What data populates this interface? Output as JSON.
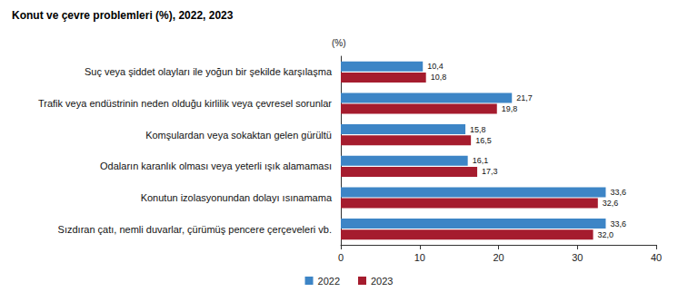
{
  "chart_data": {
    "type": "bar",
    "title": "Konut ve çevre problemleri (%), 2022, 2023",
    "xlabel": "(%)",
    "orientation": "horizontal",
    "categories": [
      "Suç veya şiddet olayları ile yoğun bir şekilde karşılaşma",
      "Trafik veya endüstrinin neden olduğu kirlilik veya çevresel sorunlar",
      "Komşulardan veya sokaktan gelen gürültü",
      "Odaların karanlık olması veya yeterli ışık alamaması",
      "Konutun izolasyonundan dolayı ısınamama",
      "Sızdıran çatı, nemli duvarlar, çürümüş pencere çerçeveleri vb."
    ],
    "series": [
      {
        "name": "2022",
        "color": "#3d85c6",
        "values": [
          10.4,
          21.7,
          15.8,
          16.1,
          33.6,
          33.6
        ],
        "value_labels": [
          "10,4",
          "21,7",
          "15,8",
          "16,1",
          "33,6",
          "33,6"
        ]
      },
      {
        "name": "2023",
        "color": "#a51c2e",
        "values": [
          10.8,
          19.8,
          16.5,
          17.3,
          32.6,
          32.0
        ],
        "value_labels": [
          "10,8",
          "19,8",
          "16,5",
          "17,3",
          "32,6",
          "32,0"
        ]
      }
    ],
    "xlim": [
      0,
      40
    ],
    "xticks": [
      0,
      10,
      20,
      30,
      40
    ],
    "grid": false,
    "legend": "bottom",
    "data_labels": true
  }
}
